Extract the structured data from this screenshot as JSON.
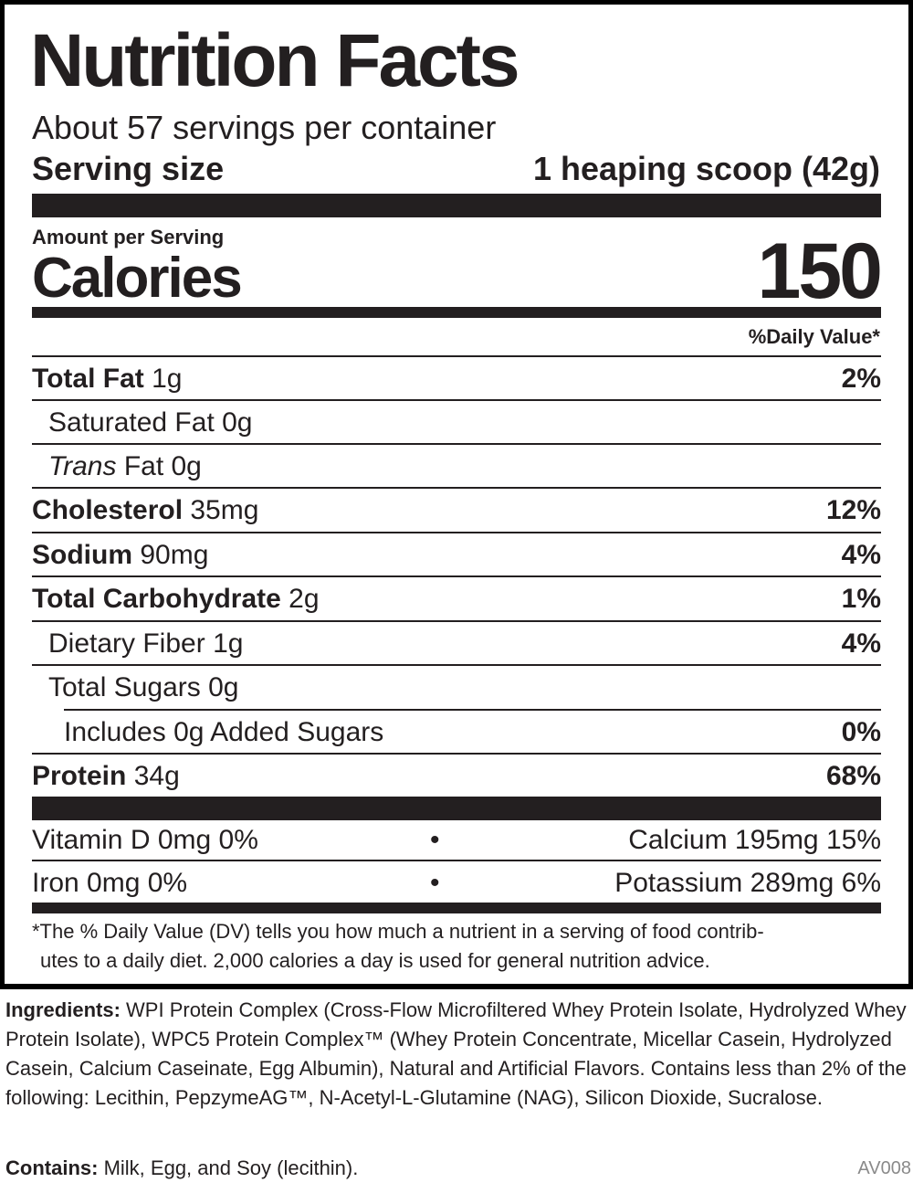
{
  "title": "Nutrition Facts",
  "servings": "About 57 servings per container",
  "serving_size_label": "Serving size",
  "serving_size_value": "1 heaping scoop (42g)",
  "amount_per_serving": "Amount per Serving",
  "calories_label": "Calories",
  "calories_value": "150",
  "dv_header": "%Daily Value*",
  "nutrients": [
    {
      "name": "Total Fat",
      "amount": "1g",
      "dv": "2%"
    },
    {
      "name": "Saturated Fat",
      "amount": "0g",
      "dv": ""
    },
    {
      "name": "Trans",
      "amount": "Fat 0g",
      "dv": ""
    },
    {
      "name": "Cholesterol",
      "amount": "35mg",
      "dv": "12%"
    },
    {
      "name": "Sodium",
      "amount": "90mg",
      "dv": "4%"
    },
    {
      "name": "Total Carbohydrate",
      "amount": "2g",
      "dv": "1%"
    },
    {
      "name": "Dietary Fiber",
      "amount": "1g",
      "dv": "4%"
    },
    {
      "name": "Total Sugars",
      "amount": "0g",
      "dv": ""
    },
    {
      "name": "Includes 0g Added Sugars",
      "amount": "",
      "dv": "0%"
    },
    {
      "name": "Protein",
      "amount": "34g",
      "dv": "68%"
    }
  ],
  "micros": [
    {
      "left": "Vitamin D 0mg 0%",
      "sep": "•",
      "right": "Calcium 195mg 15%"
    },
    {
      "left": "Iron 0mg 0%",
      "sep": "•",
      "right": "Potassium 289mg 6%"
    }
  ],
  "footnote_1": "*The % Daily Value (DV) tells you how much a nutrient in a serving of food contrib-",
  "footnote_2": "utes to a daily diet. 2,000 calories a day is used for general nutrition advice.",
  "ingredients_label": "Ingredients:",
  "ingredients_text": "WPI Protein Complex (Cross-Flow Microfiltered Whey Protein Isolate, Hydrolyzed Whey Protein Isolate), WPC5 Protein Complex™ (Whey Protein Concentrate, Micellar Casein, Hydrolyzed Casein, Calcium Caseinate, Egg Albumin), Natural and Artificial Flavors. Contains less than 2% of the following: Lecithin, PepzymeAG™, N-Acetyl-L-Glutamine (NAG), Silicon Dioxide, Sucralose.",
  "contains_label": "Contains:",
  "contains_text": "Milk, Egg, and Soy (lecithin).",
  "code": "AV008"
}
